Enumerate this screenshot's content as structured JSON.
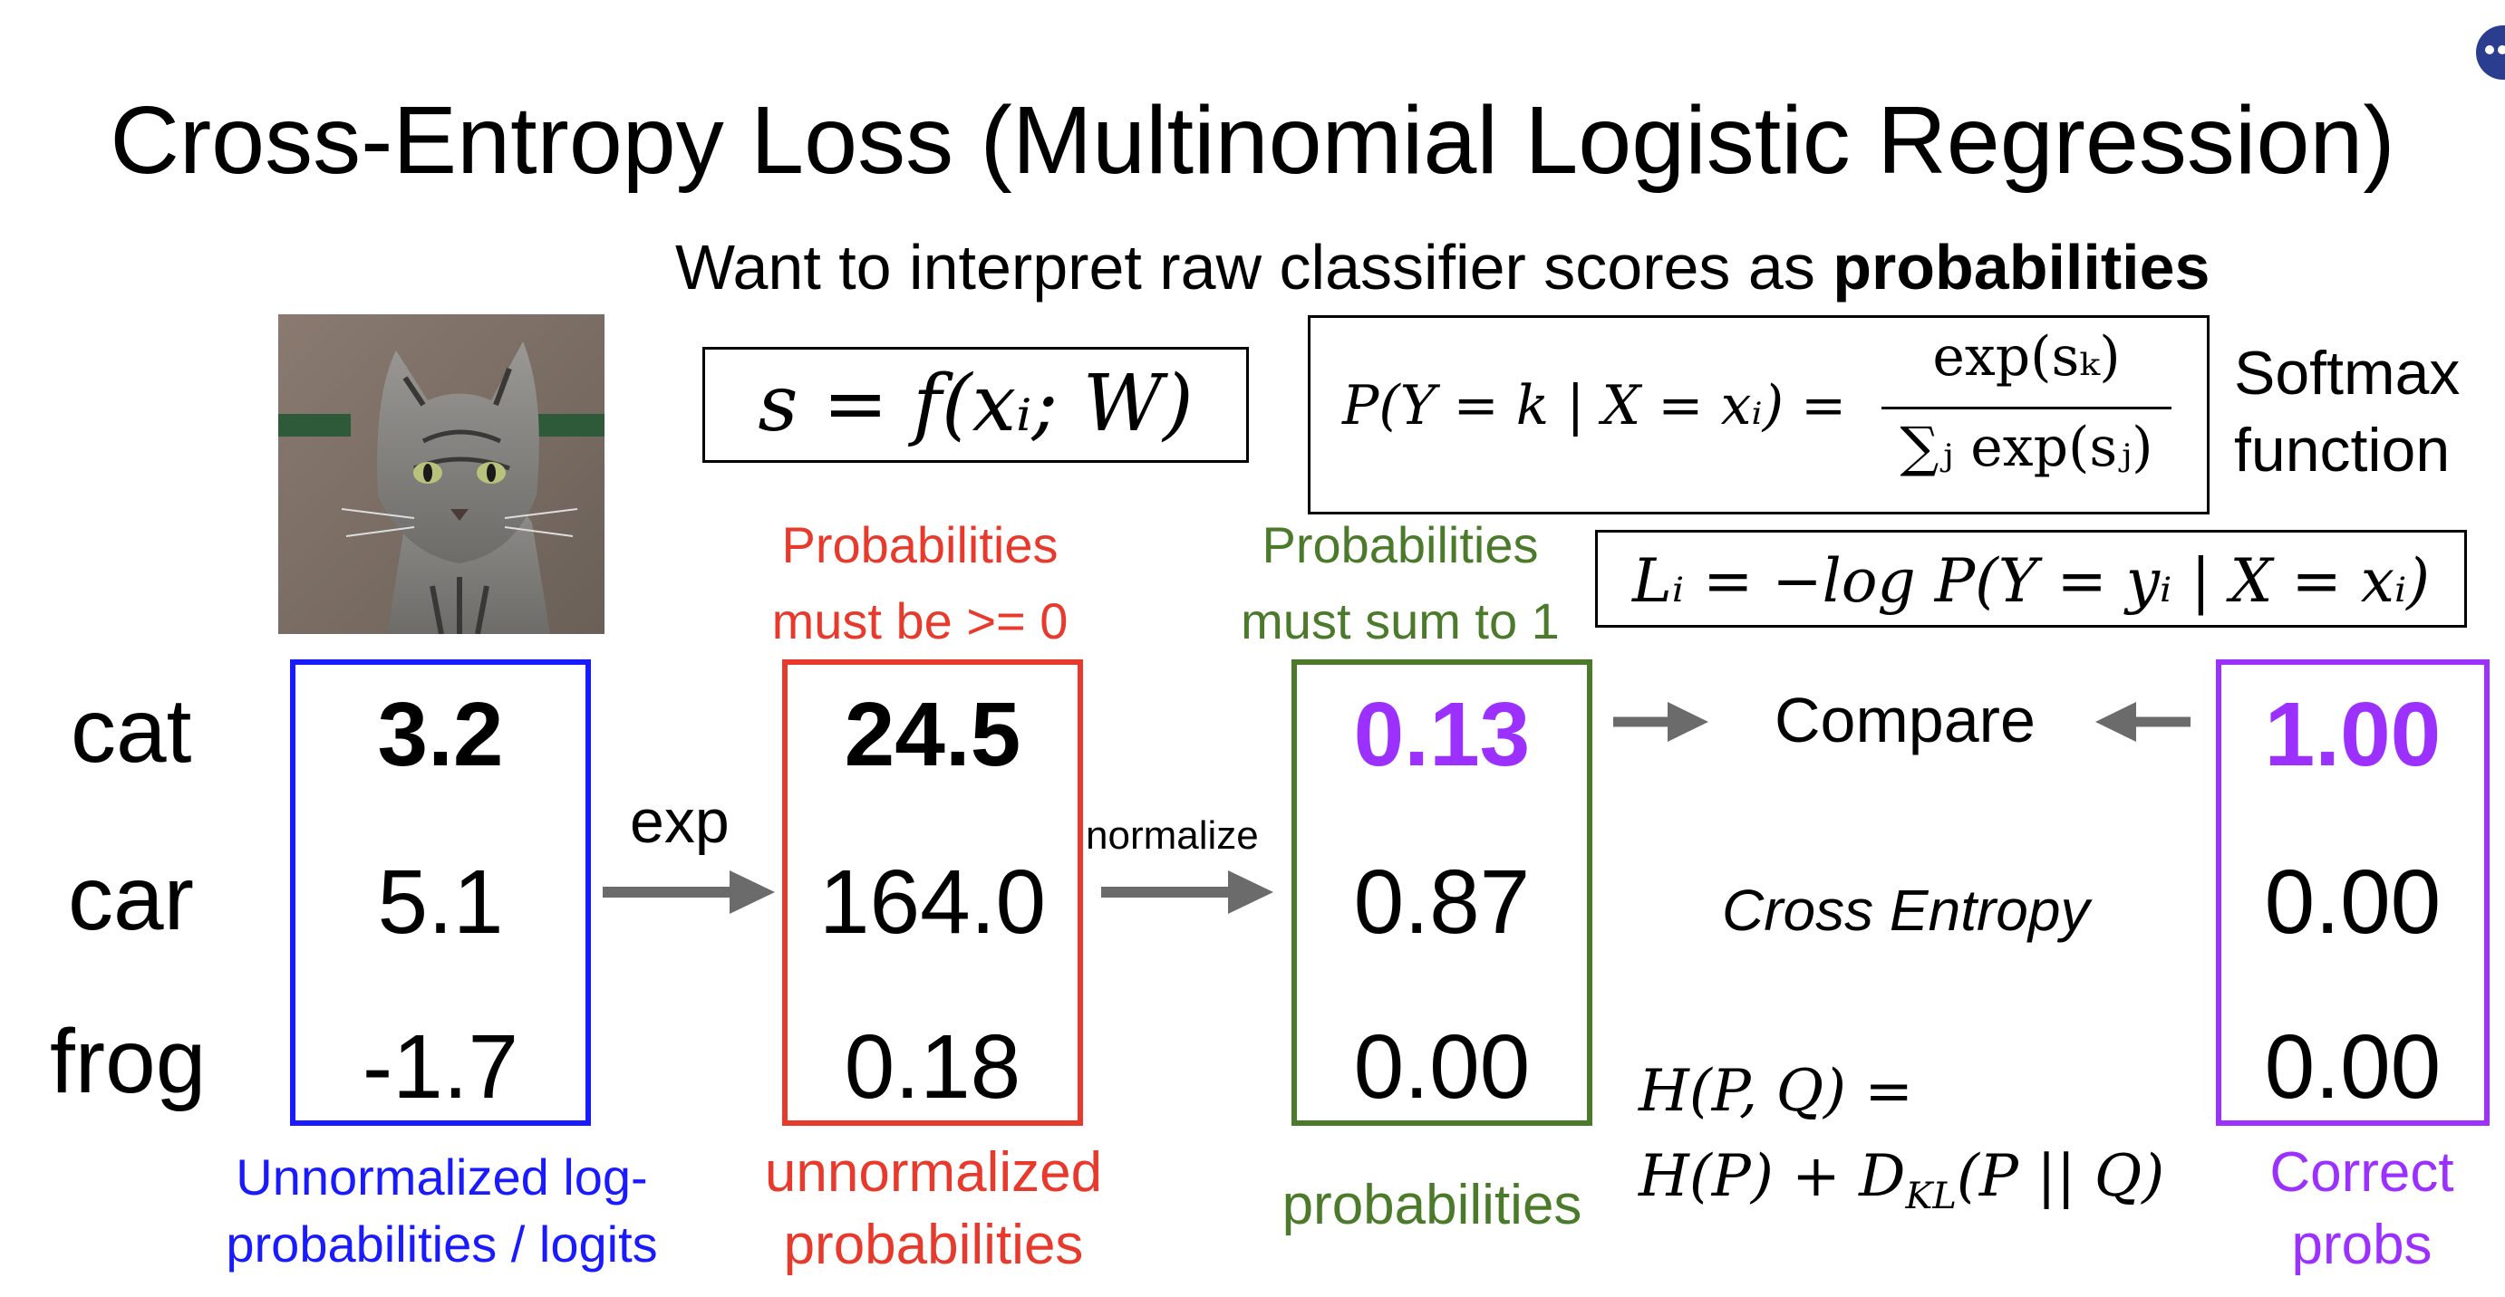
{
  "title": {
    "main": "Cross-Entropy Loss ",
    "paren": "(Multinomial Logistic Regression)"
  },
  "subtitle": {
    "text": "Want to interpret raw classifier scores as ",
    "bold": "probabilities"
  },
  "equations": {
    "score": "s = f(xᵢ; W)",
    "softmax_lhs": "P(Y = k | X = xᵢ) =",
    "softmax_num": "exp(sₖ)",
    "softmax_den": "∑ⱼ exp(sⱼ)",
    "softmax_label_1": "Softmax",
    "softmax_label_2": "function",
    "loss": "Lᵢ = −log P(Y = yᵢ | X = xᵢ)",
    "entropy_1": "H(P, Q) =",
    "entropy_2": "H(P) + D",
    "entropy_2_sub": "KL",
    "entropy_2_end": "(P || Q)"
  },
  "classes": [
    "cat",
    "car",
    "frog"
  ],
  "columns": {
    "logits": {
      "values": [
        "3.2",
        "5.1",
        "-1.7"
      ],
      "label_1": "Unnormalized log-",
      "label_2": "probabilities / logits",
      "color": "#1a1aff"
    },
    "unnormalized": {
      "values": [
        "24.5",
        "164.0",
        "0.18"
      ],
      "label_1": "unnormalized",
      "label_2": "probabilities",
      "color": "#e83a2c",
      "note_1": "Probabilities",
      "note_2": "must be >= 0"
    },
    "probs": {
      "values": [
        "0.13",
        "0.87",
        "0.00"
      ],
      "label_1": "probabilities",
      "color": "#4a7a2a",
      "note_1": "Probabilities",
      "note_2": "must sum to 1"
    },
    "correct": {
      "values": [
        "1.00",
        "0.00",
        "0.00"
      ],
      "label_1": "Correct",
      "label_2": "probs",
      "color": "#9b30ff"
    }
  },
  "arrows": {
    "exp": "exp",
    "normalize": "normalize",
    "compare": "Compare",
    "cross_entropy": "Cross Entropy"
  },
  "colors": {
    "highlight": "#9b30ff",
    "arrow": "#6b6b6b"
  }
}
